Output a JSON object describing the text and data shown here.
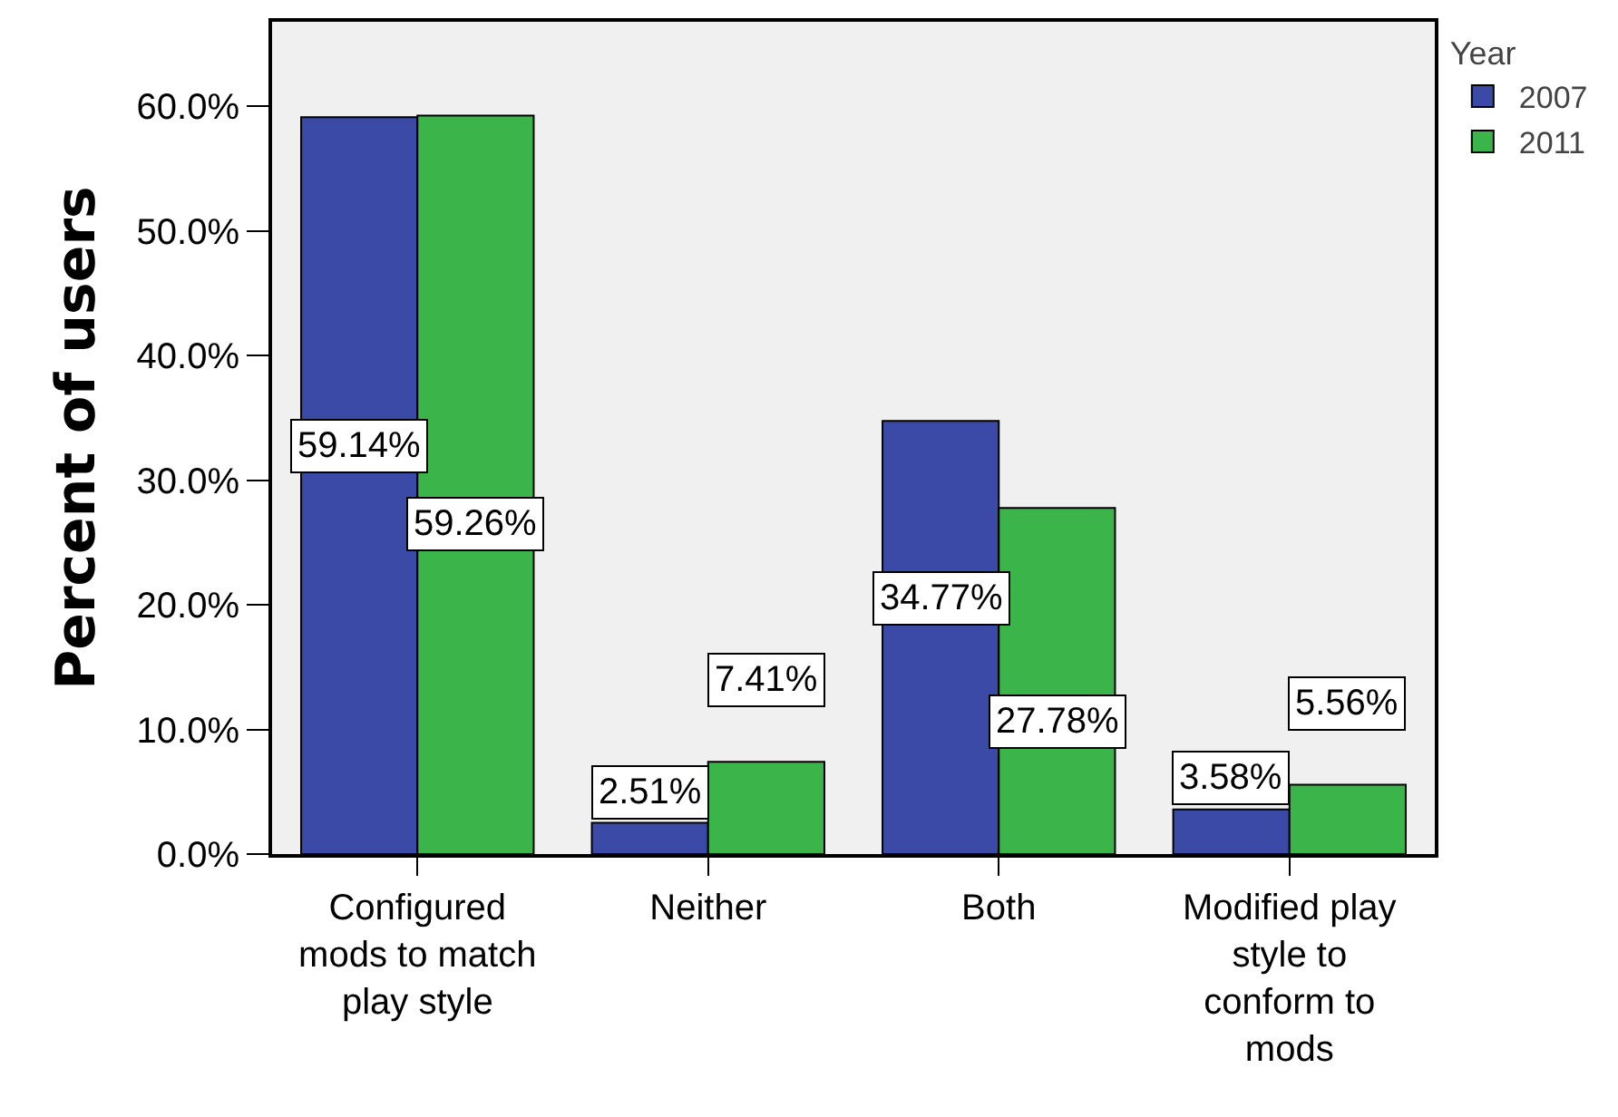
{
  "chart_data": {
    "type": "bar",
    "ylabel": "Percent of users",
    "legend_title": "Year",
    "legend": "top right",
    "grid": false,
    "categories": [
      "Configured mods to match play style",
      "Neither",
      "Both",
      "Modified play style to conform to mods"
    ],
    "series": [
      {
        "name": "2007",
        "color": "#3a4aa6",
        "values": [
          59.14,
          2.51,
          34.77,
          3.58
        ],
        "value_labels": [
          "59.14%",
          "2.51%",
          "34.77%",
          "3.58%"
        ]
      },
      {
        "name": "2011",
        "color": "#3bb54a",
        "values": [
          59.26,
          7.41,
          27.78,
          5.56
        ],
        "value_labels": [
          "59.26%",
          "7.41%",
          "27.78%",
          "5.56%"
        ]
      }
    ],
    "ylim": [
      0,
      66.8
    ],
    "yticks": [
      {
        "value": 0,
        "label": "0.0%"
      },
      {
        "value": 10,
        "label": "10.0%"
      },
      {
        "value": 20,
        "label": "20.0%"
      },
      {
        "value": 30,
        "label": "30.0%"
      },
      {
        "value": 40,
        "label": "40.0%"
      },
      {
        "value": 50,
        "label": "50.0%"
      },
      {
        "value": 60,
        "label": "60.0%"
      }
    ]
  }
}
